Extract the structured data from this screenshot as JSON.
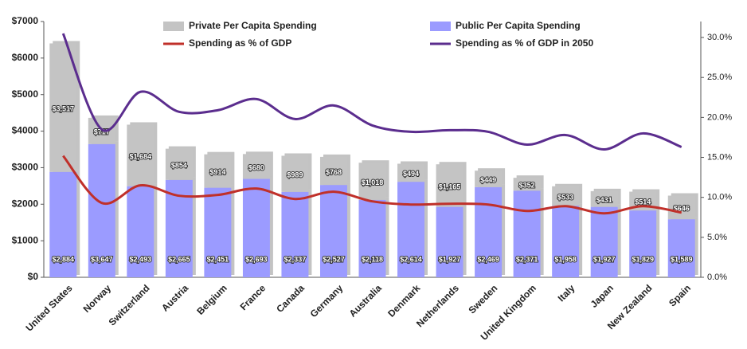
{
  "chart_data": {
    "type": "bar",
    "categories": [
      "United States",
      "Norway",
      "Switzerland",
      "Austria",
      "Belgium",
      "France",
      "Canada",
      "Germany",
      "Australia",
      "Denmark",
      "Netherlands",
      "Sweden",
      "United Kingdom",
      "Italy",
      "Japan",
      "New Zealand",
      "Spain"
    ],
    "series": [
      {
        "name": "Public Per Capita Spending",
        "type": "bar",
        "color": "#9b9bff",
        "values": [
          2884,
          3647,
          2493,
          2665,
          2451,
          2693,
          2337,
          2527,
          2118,
          2614,
          1927,
          2469,
          2371,
          1958,
          1927,
          1829,
          1589
        ],
        "value_labels": [
          "$2,884",
          "$3,647",
          "$2,493",
          "$2,665",
          "$2,451",
          "$2,693",
          "$2,337",
          "$2,527",
          "$2,118",
          "$2,614",
          "$1,927",
          "$2,469",
          "$2,371",
          "$1,958",
          "$1,927",
          "$1,829",
          "$1,589"
        ]
      },
      {
        "name": "Private Per Capita Spending",
        "type": "bar",
        "color": "#c4c4c4",
        "values": [
          3517,
          717,
          1684,
          854,
          914,
          680,
          989,
          768,
          1018,
          494,
          1165,
          449,
          352,
          533,
          431,
          514,
          646
        ],
        "value_labels": [
          "$3,517",
          "$717",
          "$1,684",
          "$854",
          "$914",
          "$680",
          "$989",
          "$768",
          "$1,018",
          "$494",
          "$1,165",
          "$449",
          "$352",
          "$533",
          "$431",
          "$514",
          "$646"
        ]
      },
      {
        "name": "Spending as % of GDP",
        "type": "line",
        "axis": "y2",
        "color": "#c0302a",
        "values": [
          15.2,
          9.3,
          11.5,
          10.2,
          10.3,
          11.1,
          9.8,
          10.7,
          9.5,
          9.1,
          9.2,
          9.1,
          8.3,
          8.9,
          8.0,
          8.9,
          8.1
        ]
      },
      {
        "name": "Spending as % of GDP in 2050",
        "type": "line",
        "axis": "y2",
        "color": "#5b2d8e",
        "values": [
          30.5,
          18.5,
          23.2,
          20.7,
          20.9,
          22.3,
          19.8,
          21.5,
          19.0,
          18.2,
          18.4,
          18.2,
          16.6,
          17.8,
          16.0,
          18.0,
          16.3
        ]
      }
    ],
    "ylim": [
      0,
      7000
    ],
    "yticks": [
      {
        "value": 0,
        "label": "$0"
      },
      {
        "value": 1000,
        "label": "$1000"
      },
      {
        "value": 2000,
        "label": "$2000"
      },
      {
        "value": 3000,
        "label": "$3000"
      },
      {
        "value": 4000,
        "label": "$4000"
      },
      {
        "value": 5000,
        "label": "$5000"
      },
      {
        "value": 6000,
        "label": "$6000"
      },
      {
        "value": 7000,
        "label": "$7000"
      }
    ],
    "y2lim": [
      0,
      32
    ],
    "y2ticks": [
      {
        "value": 0,
        "label": "0.0%"
      },
      {
        "value": 5,
        "label": "5.0%"
      },
      {
        "value": 10,
        "label": "10.0%"
      },
      {
        "value": 15,
        "label": "15.0%"
      },
      {
        "value": 20,
        "label": "20.0%"
      },
      {
        "value": 25,
        "label": "25.0%"
      },
      {
        "value": 30,
        "label": "30.0%"
      }
    ]
  }
}
